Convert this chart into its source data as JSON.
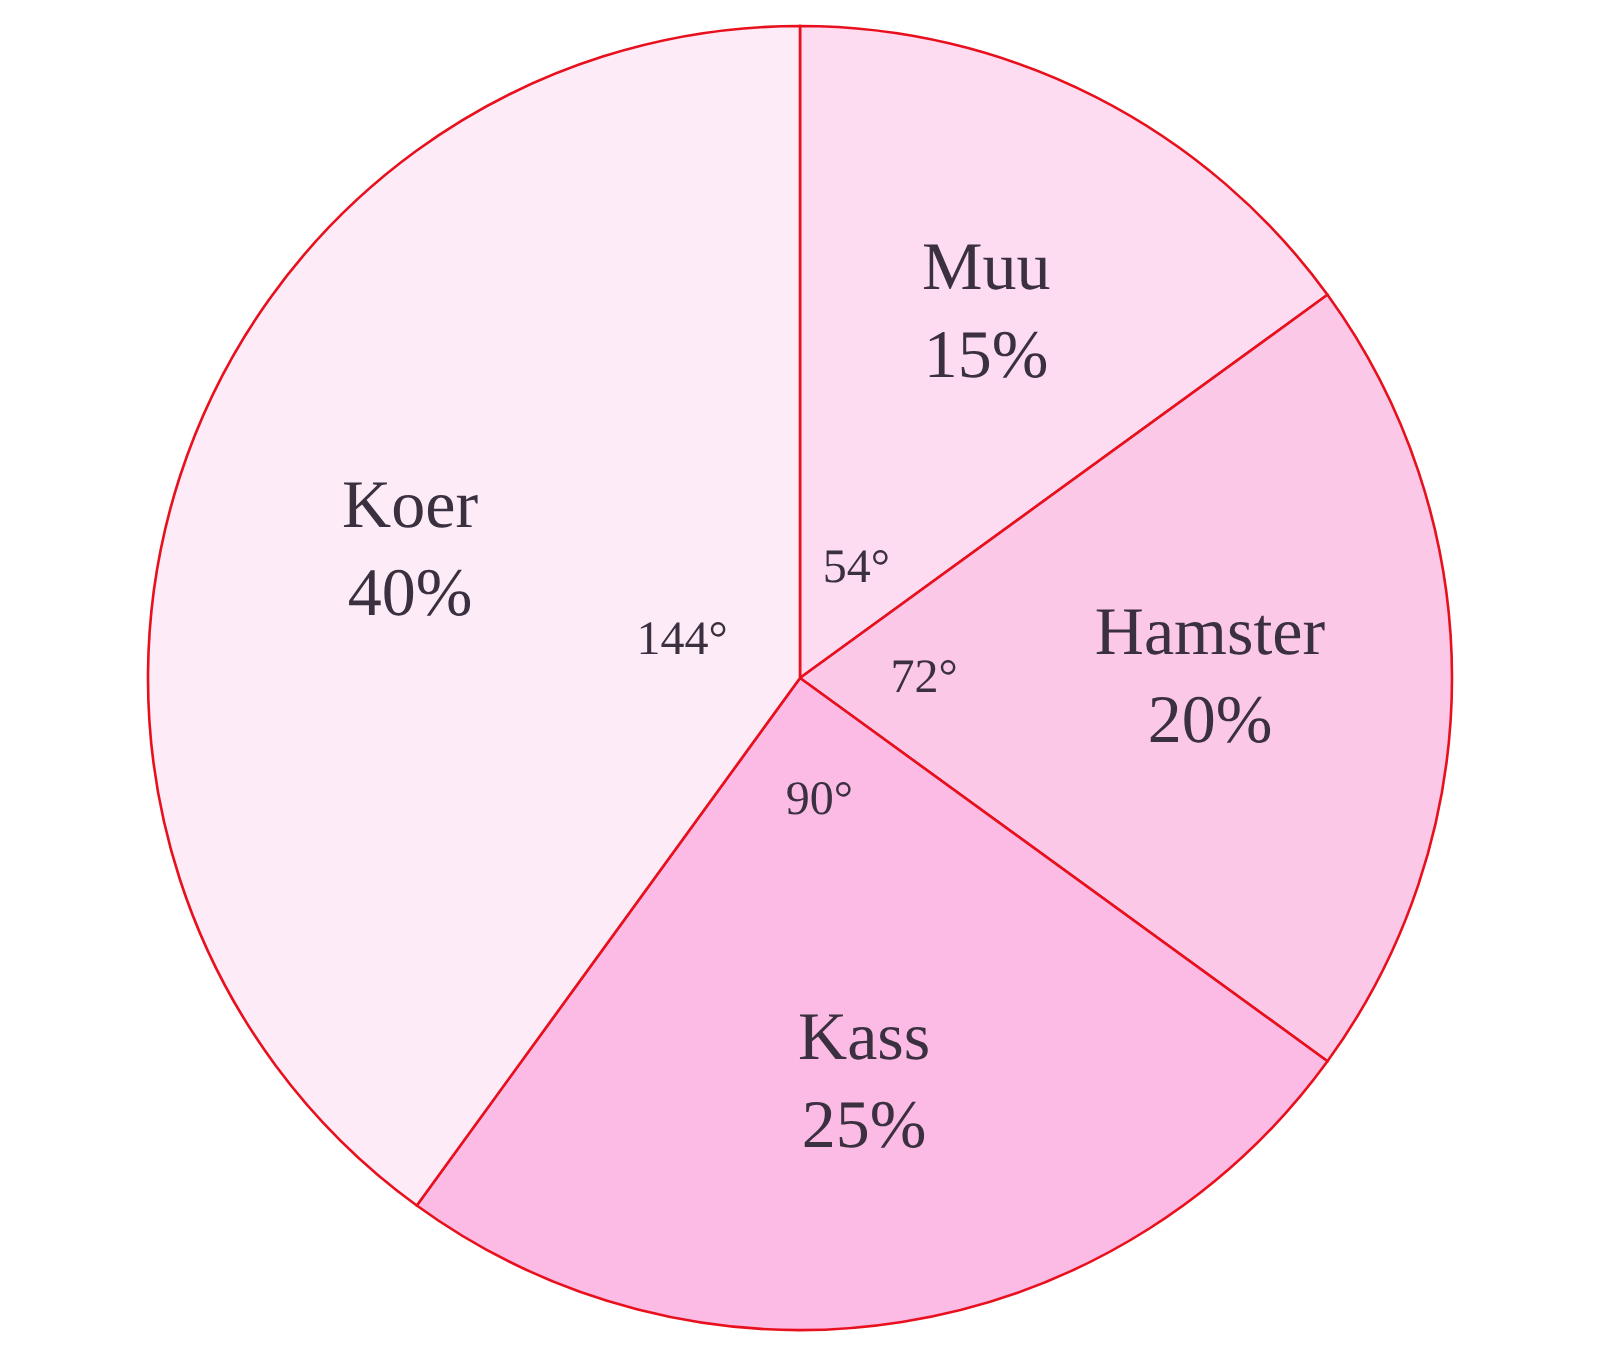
{
  "chart_data": {
    "type": "pie",
    "categories": [
      "Muu",
      "Hamster",
      "Kass",
      "Koer"
    ],
    "values": [
      15,
      20,
      25,
      40
    ],
    "colors": [
      "#fddcf1",
      "#fcc8e8",
      "#fbbbe4",
      "#fdebf7"
    ],
    "value_labels": [
      "15%",
      "20%",
      "25%",
      "40%"
    ],
    "annotations": [
      "54°",
      "72°",
      "90°",
      "144°"
    ]
  }
}
